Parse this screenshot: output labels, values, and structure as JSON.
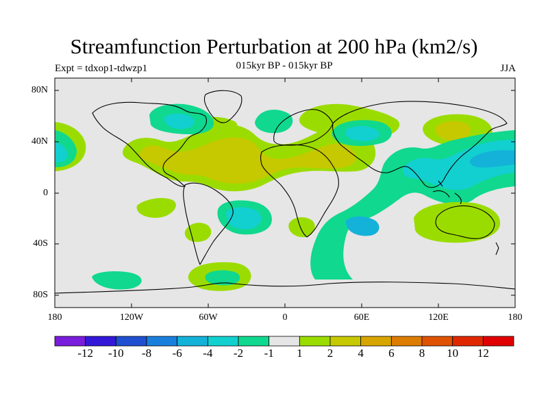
{
  "title": "Streamfunction Perturbation at 200 hPa (km2/s)",
  "experiment_label": "Expt = tdxop1-tdwzp1",
  "period_label": "015kyr BP - 015kyr BP",
  "season_label": "JJA",
  "lat_ticks": [
    "80N",
    "40N",
    "0",
    "40S",
    "80S"
  ],
  "lon_ticks": [
    "180",
    "120W",
    "60W",
    "0",
    "60E",
    "120E",
    "180"
  ],
  "colorbar": {
    "labels": [
      "-12",
      "-10",
      "-8",
      "-6",
      "-4",
      "-2",
      "-1",
      "1",
      "2",
      "4",
      "6",
      "8",
      "10",
      "12"
    ],
    "colors": [
      "#7a1cdc",
      "#3318d8",
      "#1f4fd0",
      "#1a7fdc",
      "#14b2d8",
      "#12d0d0",
      "#10d88e",
      "#e6e6e6",
      "#9bdc00",
      "#c6c800",
      "#d8a400",
      "#dc7c00",
      "#de5200",
      "#e02800",
      "#e00000"
    ]
  },
  "colors": {
    "background": "#e6e6e6",
    "coast": "#000000"
  }
}
